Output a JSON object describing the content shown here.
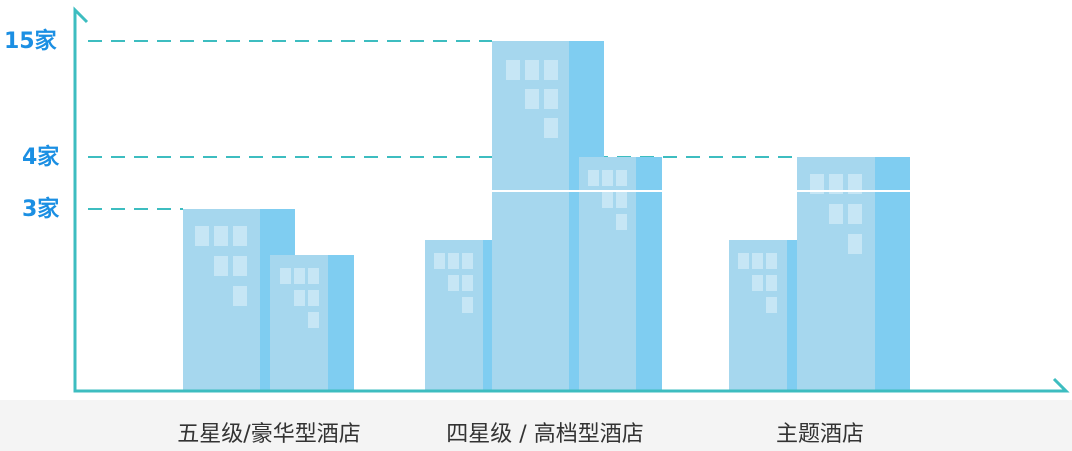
{
  "y_labels": [
    "15家",
    "4家",
    "3家"
  ],
  "categories": [
    "五星级/豪华型酒店",
    "四星级 / 高档型酒店",
    "主题酒店"
  ]
}
